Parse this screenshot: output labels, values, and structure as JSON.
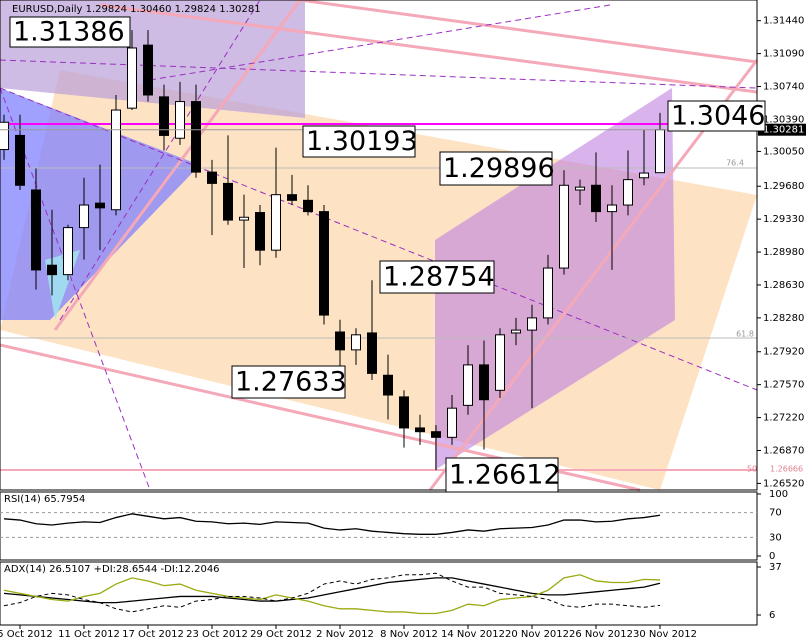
{
  "chart_data": [
    {
      "type": "candlestick",
      "title": "EURUSD,Daily  1.29824 1.30460 1.29824 1.30281",
      "categories": [
        null,
        "5 Oct 2012",
        null,
        null,
        null,
        "11 Oct 2012",
        null,
        null,
        null,
        "17 Oct 2012",
        null,
        null,
        null,
        "23 Oct 2012",
        null,
        null,
        null,
        "29 Oct 2012",
        null,
        null,
        null,
        "2 Nov 2012",
        null,
        null,
        null,
        "8 Nov 2012",
        null,
        null,
        null,
        "14 Nov 2012",
        null,
        null,
        null,
        "20 Nov 2012",
        null,
        null,
        null,
        "26 Nov 2012",
        null,
        null,
        null,
        "30 Nov 2012"
      ],
      "open": [
        1.3007,
        1.3022,
        1.2964,
        1.2884,
        1.2874,
        1.2924,
        1.295,
        1.2943,
        1.3051,
        1.3118,
        1.3063,
        1.3019,
        1.3058,
        1.2983,
        1.2971,
        1.2932,
        1.294,
        1.29,
        1.2959,
        1.2953,
        1.2941,
        1.2813,
        1.2794,
        1.2812,
        1.2767,
        1.2744,
        1.2711,
        1.2707,
        1.2701,
        1.2735,
        1.2778,
        1.2751,
        1.2812,
        1.2815,
        1.2828,
        1.2881,
        1.2964,
        1.2969,
        1.2941,
        1.2948,
        1.2977,
        1.29824
      ],
      "high": [
        1.3044,
        1.3044,
        1.2987,
        1.2943,
        1.2927,
        1.2977,
        1.2991,
        1.3065,
        1.3134,
        1.3134,
        1.3076,
        1.3079,
        1.3076,
        1.2996,
        1.3022,
        1.2959,
        1.2948,
        1.3009,
        1.298,
        1.2969,
        1.2948,
        1.2826,
        1.2817,
        1.2868,
        1.2789,
        1.2751,
        1.2725,
        1.2714,
        1.2746,
        1.2799,
        1.2804,
        1.2817,
        1.2828,
        1.2842,
        1.2895,
        1.2985,
        1.2975,
        1.3004,
        1.2969,
        1.3006,
        1.3028,
        1.3046
      ],
      "low": [
        1.2996,
        1.2964,
        1.2858,
        1.2852,
        1.2868,
        1.289,
        1.29,
        1.2937,
        1.3049,
        1.3058,
        1.3006,
        1.3012,
        1.2977,
        1.2916,
        1.2927,
        1.2881,
        1.2884,
        1.2892,
        1.2948,
        1.2937,
        1.2821,
        1.2767,
        1.2778,
        1.2762,
        1.272,
        1.269,
        1.2693,
        1.2666,
        1.2693,
        1.2725,
        1.2688,
        1.2743,
        1.2799,
        1.2732,
        1.2821,
        1.2874,
        1.2948,
        1.293,
        1.2879,
        1.2937,
        1.2969,
        1.29824
      ],
      "close": [
        1.3036,
        1.2969,
        1.2879,
        1.2874,
        1.2924,
        1.2948,
        1.2945,
        1.3049,
        1.3115,
        1.3065,
        1.3022,
        1.3058,
        1.2983,
        1.2971,
        1.2932,
        1.2935,
        1.29,
        1.2959,
        1.2953,
        1.2941,
        1.2831,
        1.2794,
        1.281,
        1.2769,
        1.2746,
        1.2711,
        1.2707,
        1.2701,
        1.2732,
        1.2778,
        1.2741,
        1.281,
        1.2815,
        1.2828,
        1.2881,
        1.2969,
        1.2967,
        1.2941,
        1.2948,
        1.2975,
        1.2982,
        1.30281
      ],
      "ylim": [
        1.2645,
        1.3166
      ],
      "yticks": [
        {
          "value": 1.3144,
          "label": "1.31440"
        },
        {
          "value": 1.3109,
          "label": "1.31090"
        },
        {
          "value": 1.3074,
          "label": "1.30740"
        },
        {
          "value": 1.3039,
          "label": "1.30390"
        },
        {
          "value": 1.3005,
          "label": "1.30050"
        },
        {
          "value": 1.2968,
          "label": "1.29680"
        },
        {
          "value": 1.2933,
          "label": "1.29330"
        },
        {
          "value": 1.2898,
          "label": "1.28980"
        },
        {
          "value": 1.2863,
          "label": "1.28630"
        },
        {
          "value": 1.2828,
          "label": "1.28280"
        },
        {
          "value": 1.2792,
          "label": "1.27920"
        },
        {
          "value": 1.2757,
          "label": "1.27570"
        },
        {
          "value": 1.2722,
          "label": "1.27220"
        },
        {
          "value": 1.2687,
          "label": "1.26870"
        },
        {
          "value": 1.2652,
          "label": "1.26520"
        }
      ],
      "price_line": 1.30281,
      "annotations": [
        "1.31386",
        "1.30193",
        "1.28754",
        "1.27633",
        "1.26612",
        "1.29896",
        "1.3046"
      ],
      "fib_labels": [
        "76.4",
        "61.8",
        "50",
        "1.26666"
      ]
    },
    {
      "type": "line",
      "title": "RSI(14) 65.7954",
      "color": "#000000",
      "values": [
        60,
        58,
        52,
        50,
        53,
        55,
        54,
        62,
        68,
        64,
        60,
        62,
        56,
        55,
        52,
        53,
        51,
        55,
        54,
        53,
        45,
        42,
        44,
        40,
        38,
        36,
        35,
        35,
        38,
        42,
        40,
        44,
        45,
        46,
        50,
        58,
        58,
        55,
        56,
        60,
        62,
        65.7954
      ],
      "ylim": [
        0,
        100
      ],
      "yticks": [
        0,
        30,
        70,
        100
      ]
    },
    {
      "type": "line",
      "title": "ADX(14) 26.5107 +DI:28.6544 -DI:12.2046",
      "series": [
        {
          "color": "#000000",
          "values": [
            20,
            19,
            18,
            17,
            16,
            15,
            14,
            14,
            15,
            16,
            17,
            18,
            18,
            18,
            17,
            16,
            15,
            15,
            16,
            17,
            19,
            21,
            23,
            25,
            27,
            28,
            29,
            30,
            30,
            28,
            26,
            24,
            22,
            20,
            19,
            19,
            20,
            21,
            22,
            23,
            24,
            26.5107
          ]
        },
        {
          "color": "#9aaa10",
          "values": [
            22,
            20,
            18,
            16,
            15,
            18,
            20,
            26,
            30,
            28,
            25,
            26,
            22,
            20,
            18,
            17,
            16,
            19,
            17,
            15,
            12,
            10,
            10,
            9,
            8,
            8,
            7,
            7,
            9,
            13,
            12,
            16,
            17,
            18,
            22,
            30,
            32,
            28,
            27,
            27,
            29,
            28.6544
          ]
        },
        {
          "color": "#000000",
          "dashed": true,
          "values": [
            12,
            14,
            18,
            20,
            19,
            16,
            14,
            10,
            8,
            10,
            12,
            11,
            15,
            16,
            18,
            18,
            17,
            15,
            17,
            20,
            26,
            28,
            26,
            29,
            30,
            32,
            32,
            33,
            28,
            24,
            24,
            20,
            19,
            18,
            16,
            12,
            11,
            13,
            13,
            12,
            11,
            12.2046
          ]
        }
      ],
      "ylim": [
        0.2,
        39.6
      ],
      "yticks": [
        6,
        37
      ]
    }
  ]
}
